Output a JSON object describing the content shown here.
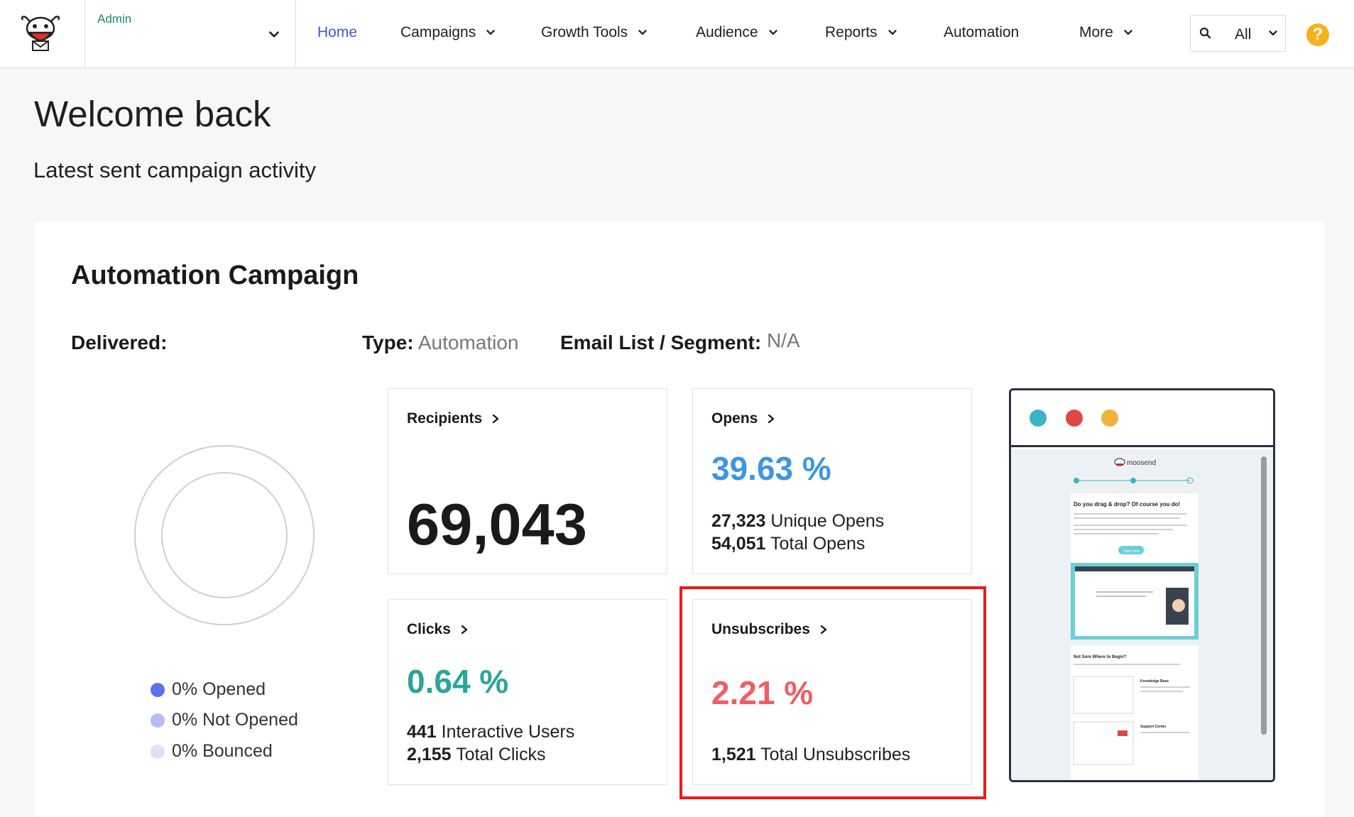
{
  "nav": {
    "account": "Admin",
    "items": [
      {
        "label": "Home",
        "dropdown": false,
        "active": true
      },
      {
        "label": "Campaigns",
        "dropdown": true
      },
      {
        "label": "Growth Tools",
        "dropdown": true
      },
      {
        "label": "Audience",
        "dropdown": true
      },
      {
        "label": "Reports",
        "dropdown": true
      },
      {
        "label": "Automation",
        "dropdown": false
      },
      {
        "label": "More",
        "dropdown": true
      }
    ],
    "search_scope": "All",
    "help_symbol": "?"
  },
  "page": {
    "title": "Welcome back",
    "subtitle": "Latest sent campaign activity"
  },
  "campaign": {
    "name": "Automation Campaign",
    "delivered_label": "Delivered:",
    "type_label": "Type:",
    "type_value": "Automation",
    "list_label": "Email List / Segment:",
    "list_value": "N/A",
    "legend": [
      {
        "label": "0% Opened",
        "color": "#5a73ea"
      },
      {
        "label": "0% Not Opened",
        "color": "#b5bdf4"
      },
      {
        "label": "0% Bounced",
        "color": "#dde1fa"
      }
    ]
  },
  "stats": {
    "recipients": {
      "label": "Recipients",
      "value": "69,043"
    },
    "opens": {
      "label": "Opens",
      "percent": "39.63 %",
      "color": "#3d97e0",
      "unique_count": "27,323",
      "unique_label": "Unique Opens",
      "total_count": "54,051",
      "total_label": "Total Opens"
    },
    "clicks": {
      "label": "Clicks",
      "percent": "0.64 %",
      "color": "#2aa59a",
      "users_count": "441",
      "users_label": "Interactive Users",
      "total_count": "2,155",
      "total_label": "Total Clicks"
    },
    "unsubscribes": {
      "label": "Unsubscribes",
      "percent": "2.21 %",
      "color": "#ee5f63",
      "total_count": "1,521",
      "total_label": "Total Unsubscribes"
    }
  },
  "preview": {
    "dot_colors": [
      "#3bb4c8",
      "#e04646",
      "#f0b23a"
    ],
    "brand": "moosend",
    "headline": "Do you drag & drop? Of course you do!",
    "cta": "Click Here",
    "section_title": "Not Sure Where to Begin?",
    "kb_title": "Knowledge Base",
    "support_title": "Support Center"
  },
  "colors": {
    "accent": "#4a52d8",
    "account": "#1a8a6a",
    "help": "#f5b21a",
    "highlight": "#ea1c1c"
  }
}
